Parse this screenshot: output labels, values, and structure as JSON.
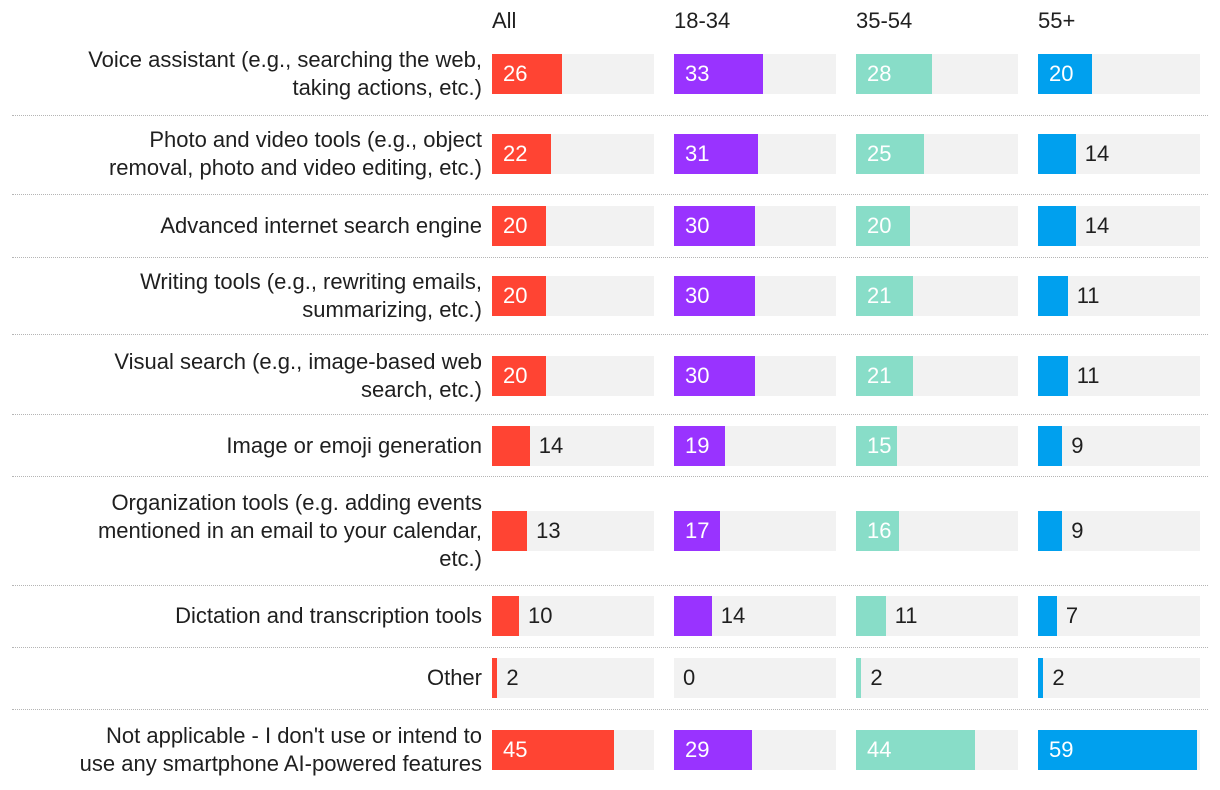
{
  "chart_data": {
    "type": "bar",
    "orientation": "horizontal",
    "layout": "small-multiples",
    "xlim": [
      0,
      60
    ],
    "groups": [
      {
        "name": "All",
        "color": "#ff4433"
      },
      {
        "name": "18-34",
        "color": "#9933ff"
      },
      {
        "name": "35-54",
        "color": "#88ddc8"
      },
      {
        "name": "55+",
        "color": "#00a0ee"
      }
    ],
    "categories": [
      {
        "lines": [
          "Voice assistant (e.g., searching the web,",
          "taking actions, etc.)"
        ]
      },
      {
        "lines": [
          "Photo and video tools (e.g., object",
          "removal, photo and video editing, etc.)"
        ]
      },
      {
        "lines": [
          "Advanced internet search engine"
        ]
      },
      {
        "lines": [
          "Writing tools (e.g., rewriting emails,",
          "summarizing, etc.)"
        ]
      },
      {
        "lines": [
          "Visual search (e.g., image-based web",
          "search, etc.)"
        ]
      },
      {
        "lines": [
          "Image or emoji generation"
        ]
      },
      {
        "lines": [
          "Organization tools (e.g. adding events",
          "mentioned in an email to your calendar,",
          "etc.)"
        ]
      },
      {
        "lines": [
          "Dictation and transcription tools"
        ]
      },
      {
        "lines": [
          "Other"
        ]
      },
      {
        "lines": [
          "Not applicable - I don't use or intend to",
          "use any smartphone AI-powered features"
        ]
      }
    ],
    "series": [
      {
        "name": "All",
        "values": [
          26,
          22,
          20,
          20,
          20,
          14,
          13,
          10,
          2,
          45
        ]
      },
      {
        "name": "18-34",
        "values": [
          33,
          31,
          30,
          30,
          30,
          19,
          17,
          14,
          0,
          29
        ]
      },
      {
        "name": "35-54",
        "values": [
          28,
          25,
          20,
          21,
          21,
          15,
          16,
          11,
          2,
          44
        ]
      },
      {
        "name": "55+",
        "values": [
          20,
          14,
          14,
          11,
          11,
          9,
          9,
          7,
          2,
          59
        ]
      }
    ]
  }
}
